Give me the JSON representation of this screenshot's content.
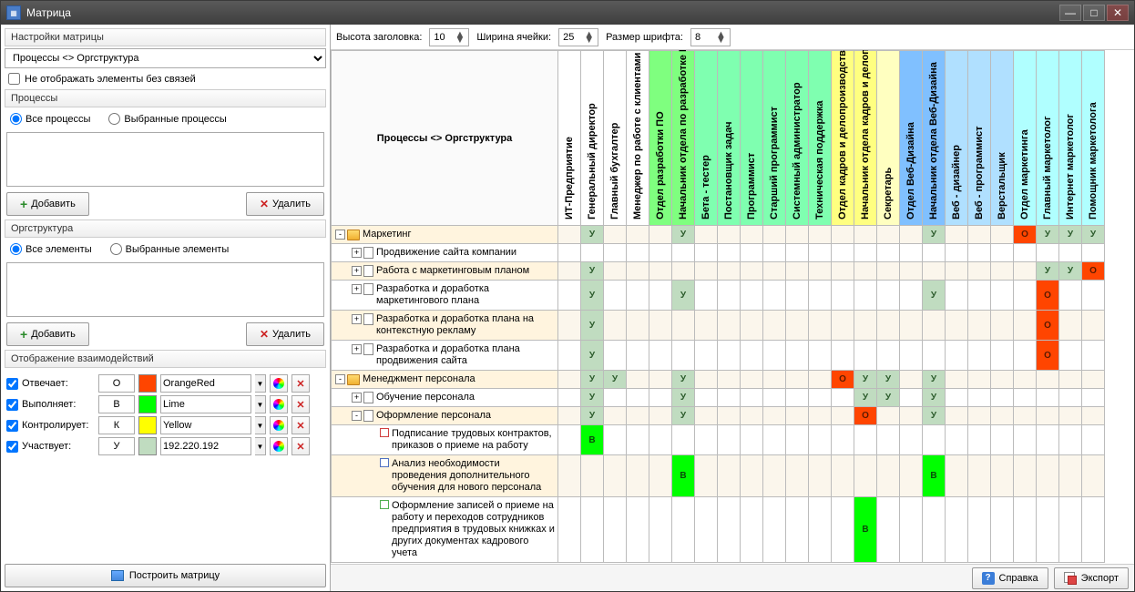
{
  "window": {
    "title": "Матрица"
  },
  "left": {
    "settings_title": "Настройки матрицы",
    "matrix_type": "Процессы <> Оргструктура",
    "hide_unlinked": "Не отображать элементы без связей",
    "processes": {
      "title": "Процессы",
      "radio_all": "Все процессы",
      "radio_sel": "Выбранные процессы",
      "radio_value": "all"
    },
    "org": {
      "title": "Оргструктура",
      "radio_all": "Все элементы",
      "radio_sel": "Выбранные элементы",
      "radio_value": "all"
    },
    "add_label": "Добавить",
    "del_label": "Удалить",
    "interactions": {
      "title": "Отображение взаимодействий",
      "rows": [
        {
          "label": "Отвечает:",
          "code": "О",
          "color": "#ff4500",
          "color_name": "OrangeRed",
          "checked": true
        },
        {
          "label": "Выполняет:",
          "code": "В",
          "color": "#00ff00",
          "color_name": "Lime",
          "checked": true
        },
        {
          "label": "Контролирует:",
          "code": "К",
          "color": "#ffff00",
          "color_name": "Yellow",
          "checked": true
        },
        {
          "label": "Участвует:",
          "code": "У",
          "color": "#c0dcc0",
          "color_name": "192.220.192",
          "checked": true
        }
      ]
    },
    "build": "Построить матрицу"
  },
  "top": {
    "header_height_lbl": "Высота заголовка:",
    "header_height": "10",
    "cell_width_lbl": "Ширина ячейки:",
    "cell_width": "25",
    "font_size_lbl": "Размер шрифта:",
    "font_size": "8"
  },
  "matrix": {
    "corner_label": "Процессы <> Оргструктура",
    "columns": [
      {
        "label": "ИТ-Предприятие",
        "bg": "#ffffff"
      },
      {
        "label": "Генеральный директор",
        "bg": "#ffffff"
      },
      {
        "label": "Главный бухгалтер",
        "bg": "#ffffff"
      },
      {
        "label": "Менеджер по работе с клиентами",
        "bg": "#ffffff"
      },
      {
        "label": "Отдел разработки ПО",
        "bg": "#7fff7f"
      },
      {
        "label": "Начальник отдела по разработке ПО",
        "bg": "#7fff7f"
      },
      {
        "label": "Бета - тестер",
        "bg": "#7fffb0"
      },
      {
        "label": "Постановщик задач",
        "bg": "#7fffb0"
      },
      {
        "label": "Программист",
        "bg": "#7fffb0"
      },
      {
        "label": "Старший программист",
        "bg": "#7fffb0"
      },
      {
        "label": "Системный администратор",
        "bg": "#7fffb0"
      },
      {
        "label": "Техническая поддержка",
        "bg": "#7fffb0"
      },
      {
        "label": "Отдел кадров и делопроизводства",
        "bg": "#ffff80"
      },
      {
        "label": "Начальник отдела кадров и делопро",
        "bg": "#ffff80"
      },
      {
        "label": "Секретарь",
        "bg": "#ffffc0"
      },
      {
        "label": "Отдел Веб-Дизайна",
        "bg": "#80c0ff"
      },
      {
        "label": "Начальник отдела Веб-Дизайна",
        "bg": "#80c0ff"
      },
      {
        "label": "Веб - дизайнер",
        "bg": "#b0e0ff"
      },
      {
        "label": "Веб - программист",
        "bg": "#b0e0ff"
      },
      {
        "label": "Верстальщик",
        "bg": "#b0e0ff"
      },
      {
        "label": "Отдел маркетинга",
        "bg": "#b0ffff"
      },
      {
        "label": "Главный маркетолог",
        "bg": "#b0ffff"
      },
      {
        "label": "Интернет маркетолог",
        "bg": "#b0ffff"
      },
      {
        "label": "Помощник маркетолога",
        "bg": "#b0ffff"
      }
    ],
    "rows": [
      {
        "indent": 0,
        "exp": "-",
        "icon": "folder",
        "label": "Маркетинг",
        "bg": "#fff4de",
        "cells": {
          "1": "У",
          "5": "У",
          "16": "У",
          "20": "О",
          "21": "У",
          "22": "У",
          "23": "У"
        }
      },
      {
        "indent": 1,
        "exp": "+",
        "icon": "doc",
        "label": "Продвижение сайта компании",
        "bg": "#ffffff",
        "cells": {}
      },
      {
        "indent": 1,
        "exp": "+",
        "icon": "doc",
        "label": "Работа с маркетинговым планом",
        "bg": "#fff4de",
        "cells": {
          "1": "У",
          "21": "У",
          "22": "У",
          "23": "О"
        }
      },
      {
        "indent": 1,
        "exp": "+",
        "icon": "doc",
        "label": "Разработка и доработка маркетингового плана",
        "bg": "#ffffff",
        "cells": {
          "1": "У",
          "5": "У",
          "16": "У",
          "21": "О"
        }
      },
      {
        "indent": 1,
        "exp": "+",
        "icon": "doc",
        "label": "Разработка и доработка плана на контекстную рекламу",
        "bg": "#fff4de",
        "cells": {
          "1": "У",
          "21": "О"
        }
      },
      {
        "indent": 1,
        "exp": "+",
        "icon": "doc",
        "label": "Разработка и доработка плана продвижения сайта",
        "bg": "#ffffff",
        "cells": {
          "1": "У",
          "21": "О"
        }
      },
      {
        "indent": 0,
        "exp": "-",
        "icon": "folder",
        "label": "Менеджмент персонала",
        "bg": "#fff4de",
        "cells": {
          "1": "У",
          "2": "У",
          "5": "У",
          "12": "О",
          "13": "У",
          "14": "У",
          "16": "У"
        }
      },
      {
        "indent": 1,
        "exp": "+",
        "icon": "doc",
        "label": "Обучение персонала",
        "bg": "#ffffff",
        "cells": {
          "1": "У",
          "5": "У",
          "13": "У",
          "14": "У",
          "16": "У"
        }
      },
      {
        "indent": 1,
        "exp": "-",
        "icon": "doc",
        "label": "Оформление персонала",
        "bg": "#fff4de",
        "cells": {
          "1": "У",
          "5": "У",
          "13": "О",
          "16": "У"
        }
      },
      {
        "indent": 2,
        "exp": "",
        "icon": "sq",
        "iconColor": "#d04040",
        "label": "Подписание трудовых контрактов, приказов о приеме на работу",
        "bg": "#ffffff",
        "cells": {
          "1": "В"
        }
      },
      {
        "indent": 2,
        "exp": "",
        "icon": "sq",
        "iconColor": "#5070c0",
        "label": "Анализ необходимости проведения дополнительного обучения для нового персонала",
        "bg": "#fff4de",
        "cells": {
          "5": "В",
          "16": "В"
        }
      },
      {
        "indent": 2,
        "exp": "",
        "icon": "sq",
        "iconColor": "#50b050",
        "label": "Оформление записей о приеме на работу и переходов сотрудников предприятия в трудовых книжках и других документах кадрового учета",
        "bg": "#ffffff",
        "cells": {
          "13": "В"
        }
      }
    ],
    "cell_colors": {
      "У": "#c0dcc0",
      "О": "#ff4500",
      "В": "#00ff00",
      "К": "#ffff00"
    },
    "cell_text_colors": {
      "У": "#2a5a2a",
      "О": "#5a1a00",
      "В": "#0a4a0a",
      "К": "#5a5a00"
    }
  },
  "bottom": {
    "help": "Справка",
    "export": "Экспорт"
  }
}
